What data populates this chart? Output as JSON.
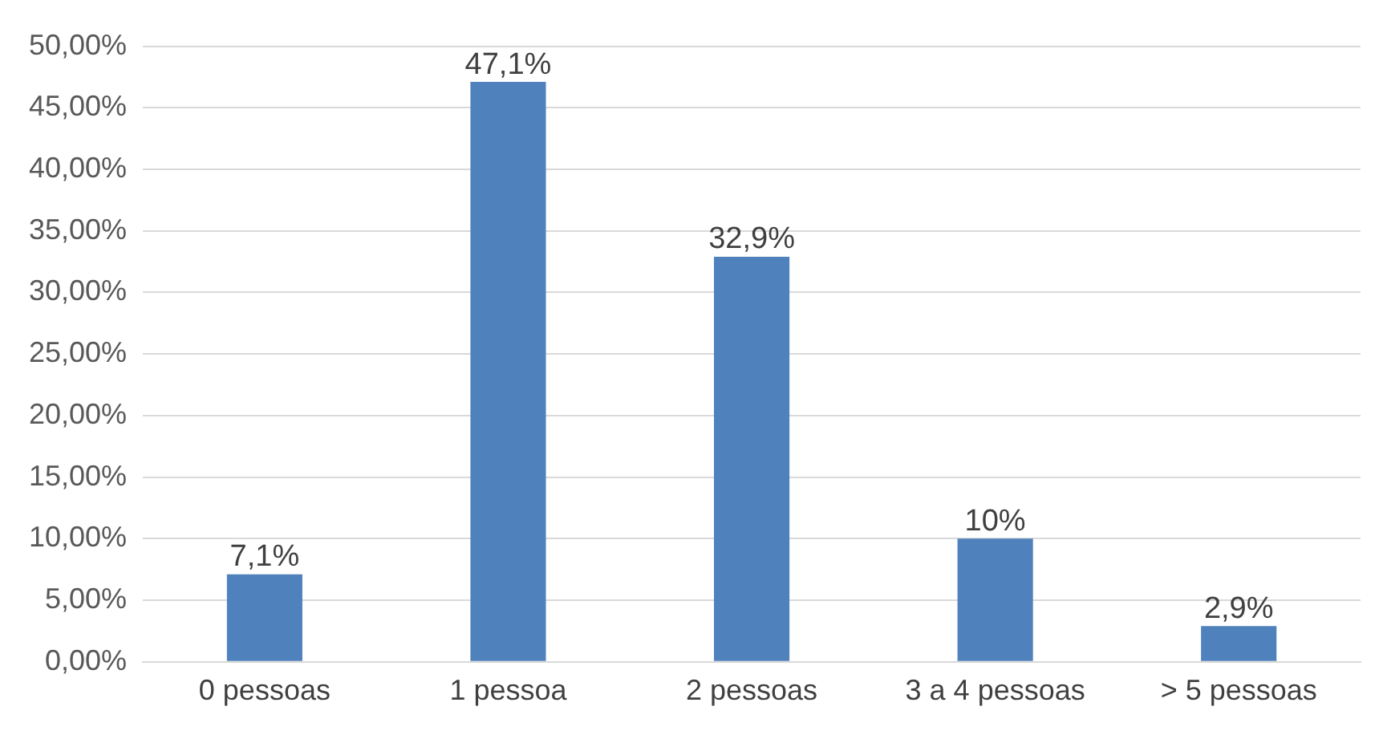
{
  "chart_data": {
    "type": "bar",
    "categories": [
      "0 pessoas",
      "1 pessoa",
      "2 pessoas",
      "3 a 4 pessoas",
      "> 5 pessoas"
    ],
    "values": [
      7.1,
      47.1,
      32.9,
      10,
      2.9
    ],
    "value_labels": [
      "7,1%",
      "47,1%",
      "32,9%",
      "10%",
      "2,9%"
    ],
    "color": "#4f81bd",
    "ylim": [
      0,
      50
    ],
    "yticks": [
      {
        "value": 0,
        "label": "0,00%"
      },
      {
        "value": 5,
        "label": "5,00%"
      },
      {
        "value": 10,
        "label": "10,00%"
      },
      {
        "value": 15,
        "label": "15,00%"
      },
      {
        "value": 20,
        "label": "20,00%"
      },
      {
        "value": 25,
        "label": "25,00%"
      },
      {
        "value": 30,
        "label": "30,00%"
      },
      {
        "value": 35,
        "label": "35,00%"
      },
      {
        "value": 40,
        "label": "40,00%"
      },
      {
        "value": 45,
        "label": "45,00%"
      },
      {
        "value": 50,
        "label": "50,00%"
      }
    ],
    "grid": "y",
    "legend": false
  }
}
